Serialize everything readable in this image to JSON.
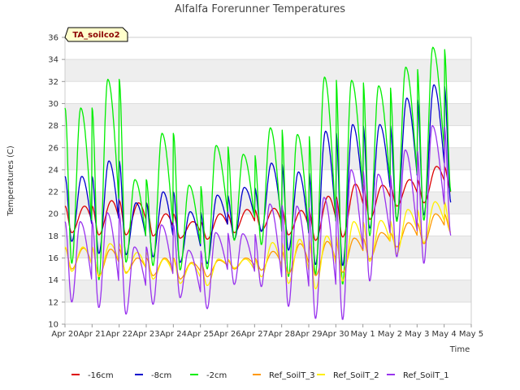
{
  "chart_data": {
    "type": "line",
    "title": "Alfalfa Forerunner Temperatures",
    "xlabel": "Time",
    "ylabel": "Temperatures (C)",
    "badge": "TA_soilco2",
    "ylim": [
      10,
      36
    ],
    "yticks": [
      10,
      12,
      14,
      16,
      18,
      20,
      22,
      24,
      26,
      28,
      30,
      32,
      34,
      36
    ],
    "xlim": [
      0,
      15
    ],
    "xticks": [
      {
        "x": 0,
        "label": "Apr 20"
      },
      {
        "x": 1,
        "label": "Apr 21"
      },
      {
        "x": 2,
        "label": "Apr 22"
      },
      {
        "x": 3,
        "label": "Apr 23"
      },
      {
        "x": 4,
        "label": "Apr 24"
      },
      {
        "x": 5,
        "label": "Apr 25"
      },
      {
        "x": 6,
        "label": "Apr 26"
      },
      {
        "x": 7,
        "label": "Apr 27"
      },
      {
        "x": 8,
        "label": "Apr 28"
      },
      {
        "x": 9,
        "label": "Apr 29"
      },
      {
        "x": 10,
        "label": "Apr 30"
      },
      {
        "x": 11,
        "label": "May 1"
      },
      {
        "x": 12,
        "label": "May 2"
      },
      {
        "x": 13,
        "label": "May 3"
      },
      {
        "x": 14,
        "label": "May 4"
      },
      {
        "x": 15,
        "label": "May 5"
      }
    ],
    "grid": "horizontal bands",
    "legend_position": "bottom",
    "days": [
      "Apr 20",
      "Apr 21",
      "Apr 22",
      "Apr 23",
      "Apr 24",
      "Apr 25",
      "Apr 26",
      "Apr 27",
      "Apr 28",
      "Apr 29",
      "Apr 30",
      "May 1",
      "May 2",
      "May 3",
      "May 4"
    ],
    "series": [
      {
        "name": "-16cm",
        "color": "#dd0000",
        "end": 14.25,
        "peak_phase": 0.72,
        "min": [
          18.3,
          18.1,
          18.1,
          18.0,
          17.8,
          17.7,
          18.3,
          18.5,
          18.1,
          17.6,
          17.9,
          19.5,
          20.7,
          21.0,
          22.0
        ],
        "max": [
          20.7,
          21.2,
          21.0,
          20.0,
          19.3,
          20.0,
          20.4,
          20.5,
          20.3,
          21.6,
          22.7,
          22.6,
          23.1,
          24.3,
          25.6
        ]
      },
      {
        "name": "-8cm",
        "color": "#0000cc",
        "end": 14.25,
        "peak_phase": 0.62,
        "min": [
          17.5,
          16.4,
          16.3,
          16.1,
          15.6,
          15.5,
          17.7,
          18.4,
          16.7,
          15.4,
          15.3,
          18.7,
          19.5,
          19.9,
          21.0
        ],
        "max": [
          23.4,
          24.8,
          21.0,
          22.0,
          20.2,
          21.7,
          22.4,
          24.6,
          23.8,
          27.5,
          28.1,
          28.1,
          30.5,
          31.7,
          24.0
        ]
      },
      {
        "name": "-2cm",
        "color": "#00ee00",
        "end": 14.25,
        "peak_phase": 0.58,
        "min": [
          15.5,
          14.0,
          15.6,
          15.3,
          14.9,
          15.0,
          17.6,
          17.2,
          14.3,
          14.5,
          13.6,
          18.0,
          19.3,
          19.4,
          22.0
        ],
        "max": [
          29.6,
          32.2,
          23.1,
          27.3,
          22.6,
          26.2,
          25.4,
          27.8,
          27.2,
          32.4,
          32.1,
          31.6,
          33.3,
          35.1,
          22.0
        ]
      },
      {
        "name": "Ref_SoilT_3",
        "color": "#ff9900",
        "end": 14.25,
        "peak_phase": 0.68,
        "min": [
          15.0,
          14.4,
          14.7,
          14.4,
          14.1,
          14.3,
          15.0,
          14.9,
          14.6,
          14.4,
          14.7,
          15.9,
          17.0,
          17.3,
          18.3
        ],
        "max": [
          16.9,
          16.8,
          16.0,
          16.0,
          15.6,
          15.8,
          16.0,
          16.6,
          17.3,
          17.5,
          17.8,
          18.3,
          19.2,
          20.0,
          21.5
        ]
      },
      {
        "name": "Ref_SoilT_2",
        "color": "#ffee00",
        "end": 14.25,
        "peak_phase": 0.66,
        "min": [
          14.8,
          14.3,
          14.6,
          14.1,
          13.7,
          13.5,
          15.1,
          14.3,
          13.7,
          13.2,
          13.9,
          15.7,
          16.4,
          17.4,
          18.3
        ],
        "max": [
          17.0,
          17.3,
          16.5,
          15.9,
          15.5,
          15.9,
          15.9,
          17.4,
          17.7,
          18.0,
          19.3,
          19.4,
          20.4,
          21.1,
          22.1
        ]
      },
      {
        "name": "Ref_SoilT_1",
        "color": "#9933ee",
        "end": 14.25,
        "peak_phase": 0.56,
        "min": [
          12.0,
          11.5,
          10.9,
          11.8,
          12.4,
          11.4,
          13.6,
          13.4,
          11.6,
          10.5,
          10.4,
          13.9,
          16.1,
          15.5,
          18.0
        ],
        "max": [
          19.3,
          20.1,
          17.0,
          19.0,
          16.7,
          18.3,
          18.2,
          20.9,
          20.7,
          21.5,
          24.0,
          23.6,
          25.8,
          28.0,
          18.0
        ]
      }
    ]
  }
}
